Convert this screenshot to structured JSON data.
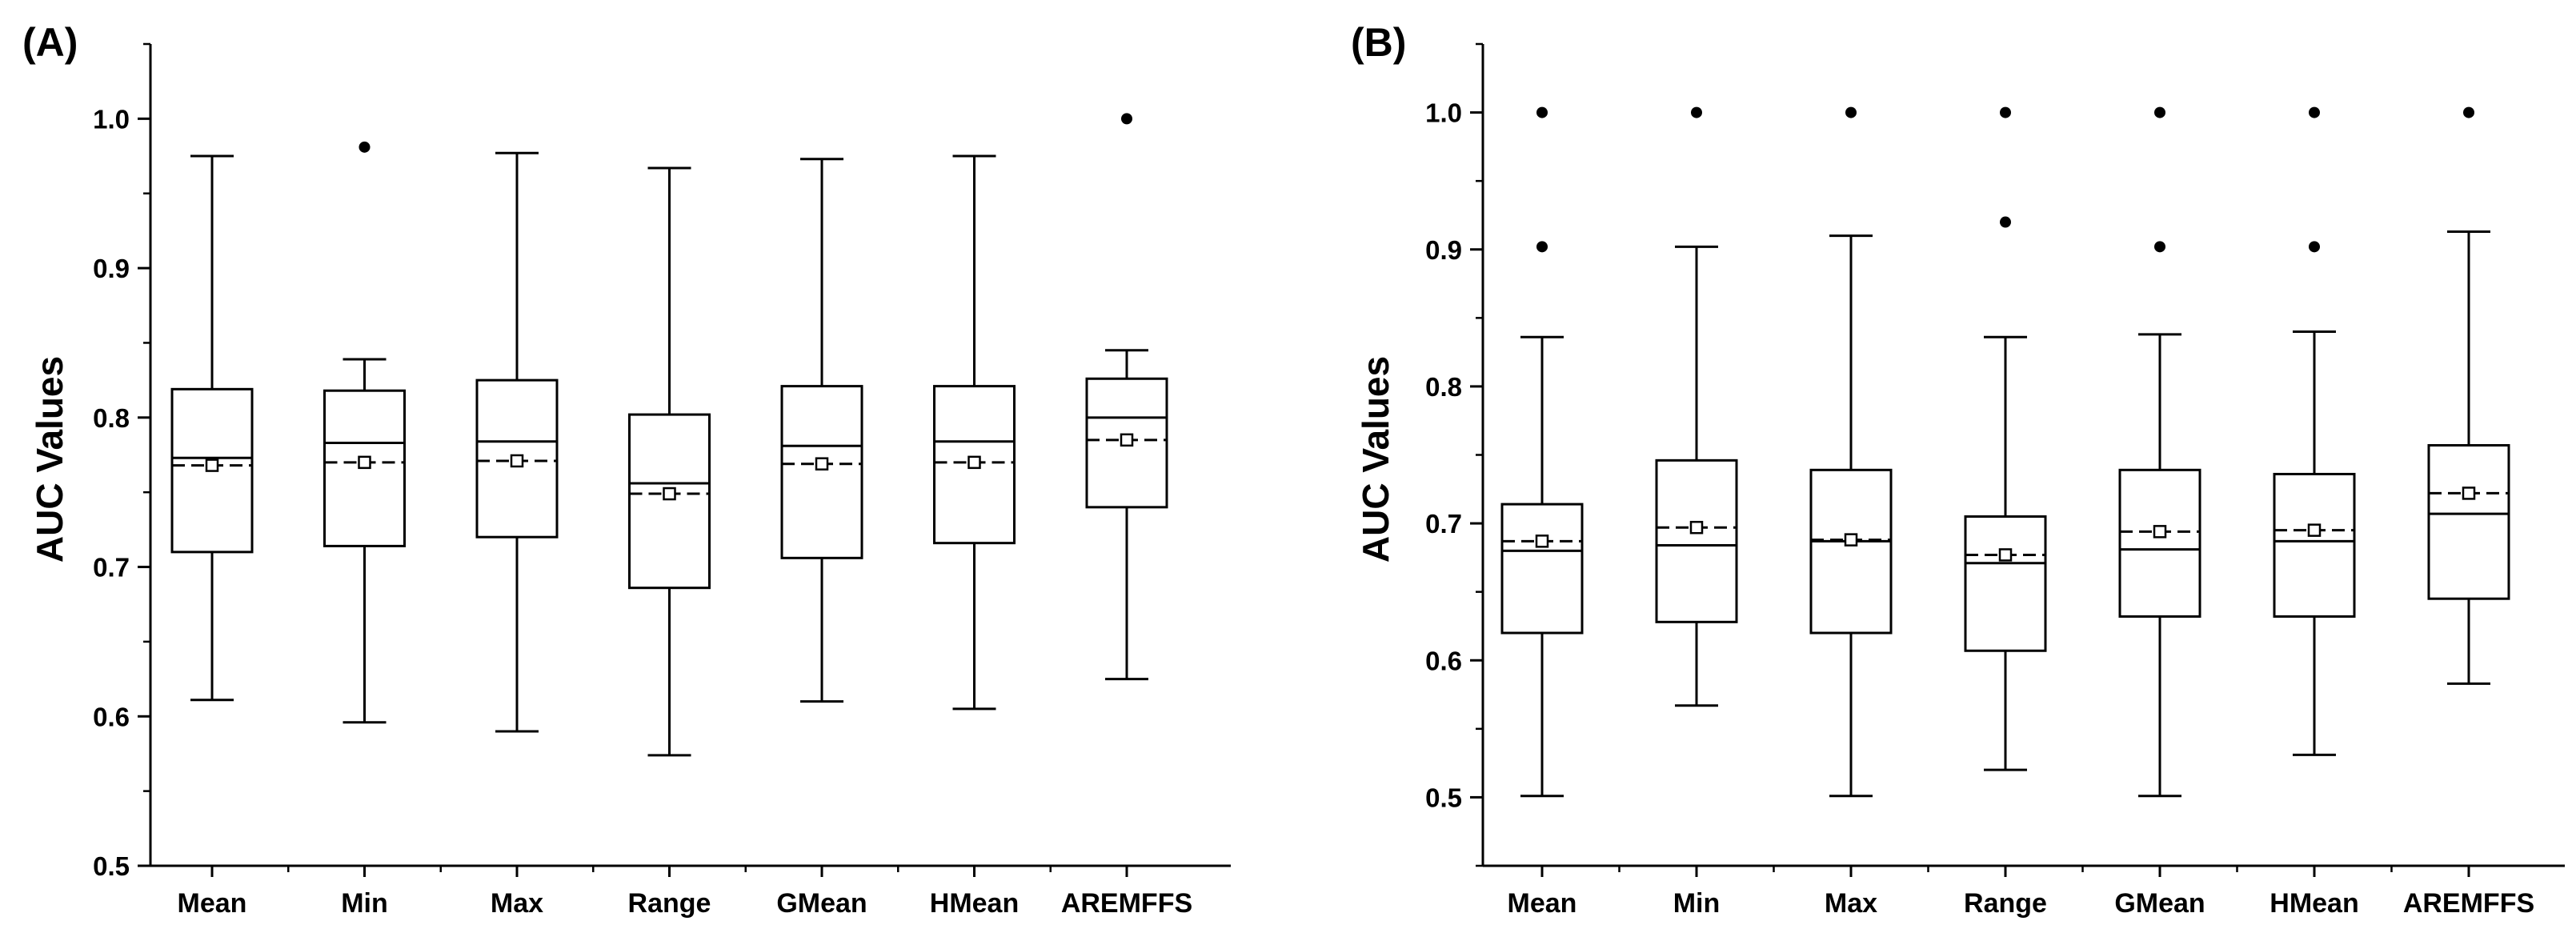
{
  "chart_data": [
    {
      "panel_label": "(A)",
      "type": "box",
      "ylabel": "AUC Values",
      "xlabel": "",
      "ylim": [
        0.5,
        1.05
      ],
      "yticks": [
        0.5,
        0.6,
        0.7,
        0.8,
        0.9,
        1.0
      ],
      "ytick_labels": [
        "0.5",
        "0.6",
        "0.7",
        "0.8",
        "0.9",
        "1.0"
      ],
      "categories": [
        "Mean",
        "Min",
        "Max",
        "Range",
        "GMean",
        "HMean",
        "AREMFFS"
      ],
      "boxes": [
        {
          "whisker_low": 0.611,
          "q1": 0.71,
          "median": 0.773,
          "q3": 0.819,
          "whisker_high": 0.975,
          "mean": 0.768,
          "outliers": []
        },
        {
          "whisker_low": 0.596,
          "q1": 0.714,
          "median": 0.783,
          "q3": 0.818,
          "whisker_high": 0.839,
          "mean": 0.77,
          "outliers": [
            0.981
          ]
        },
        {
          "whisker_low": 0.59,
          "q1": 0.72,
          "median": 0.784,
          "q3": 0.825,
          "whisker_high": 0.977,
          "mean": 0.771,
          "outliers": []
        },
        {
          "whisker_low": 0.574,
          "q1": 0.686,
          "median": 0.756,
          "q3": 0.802,
          "whisker_high": 0.967,
          "mean": 0.749,
          "outliers": []
        },
        {
          "whisker_low": 0.61,
          "q1": 0.706,
          "median": 0.781,
          "q3": 0.821,
          "whisker_high": 0.973,
          "mean": 0.769,
          "outliers": []
        },
        {
          "whisker_low": 0.605,
          "q1": 0.716,
          "median": 0.784,
          "q3": 0.821,
          "whisker_high": 0.975,
          "mean": 0.77,
          "outliers": []
        },
        {
          "whisker_low": 0.625,
          "q1": 0.74,
          "median": 0.8,
          "q3": 0.826,
          "whisker_high": 0.845,
          "mean": 0.785,
          "outliers": [
            1.0
          ]
        }
      ]
    },
    {
      "panel_label": "(B)",
      "type": "box",
      "ylabel": "AUC Values",
      "xlabel": "",
      "ylim": [
        0.45,
        1.05
      ],
      "yticks": [
        0.5,
        0.6,
        0.7,
        0.8,
        0.9,
        1.0
      ],
      "ytick_labels": [
        "0.5",
        "0.6",
        "0.7",
        "0.8",
        "0.9",
        "1.0"
      ],
      "categories": [
        "Mean",
        "Min",
        "Max",
        "Range",
        "GMean",
        "HMean",
        "AREMFFS"
      ],
      "boxes": [
        {
          "whisker_low": 0.501,
          "q1": 0.62,
          "median": 0.68,
          "q3": 0.714,
          "whisker_high": 0.836,
          "mean": 0.687,
          "outliers": [
            0.902,
            1.0
          ]
        },
        {
          "whisker_low": 0.567,
          "q1": 0.628,
          "median": 0.684,
          "q3": 0.746,
          "whisker_high": 0.902,
          "mean": 0.697,
          "outliers": [
            1.0
          ]
        },
        {
          "whisker_low": 0.501,
          "q1": 0.62,
          "median": 0.687,
          "q3": 0.739,
          "whisker_high": 0.91,
          "mean": 0.688,
          "outliers": [
            1.0
          ]
        },
        {
          "whisker_low": 0.52,
          "q1": 0.607,
          "median": 0.671,
          "q3": 0.705,
          "whisker_high": 0.836,
          "mean": 0.677,
          "outliers": [
            0.92,
            1.0
          ]
        },
        {
          "whisker_low": 0.501,
          "q1": 0.632,
          "median": 0.681,
          "q3": 0.739,
          "whisker_high": 0.838,
          "mean": 0.694,
          "outliers": [
            0.902,
            1.0
          ]
        },
        {
          "whisker_low": 0.531,
          "q1": 0.632,
          "median": 0.687,
          "q3": 0.736,
          "whisker_high": 0.84,
          "mean": 0.695,
          "outliers": [
            0.902,
            1.0
          ]
        },
        {
          "whisker_low": 0.583,
          "q1": 0.645,
          "median": 0.707,
          "q3": 0.757,
          "whisker_high": 0.913,
          "mean": 0.722,
          "outliers": [
            1.0
          ]
        }
      ]
    }
  ]
}
